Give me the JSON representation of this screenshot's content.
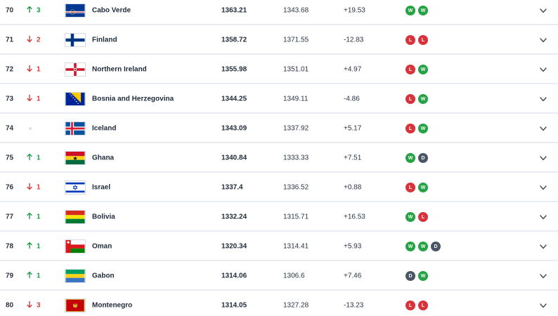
{
  "rows": [
    {
      "rank": "70",
      "move_dir": "up",
      "move": "3",
      "team": "Cabo Verde",
      "flag": "cabo-verde",
      "points": "1363.21",
      "previous": "1343.68",
      "diff": "+19.53",
      "form": [
        "W",
        "W"
      ]
    },
    {
      "rank": "71",
      "move_dir": "down",
      "move": "2",
      "team": "Finland",
      "flag": "finland",
      "points": "1358.72",
      "previous": "1371.55",
      "diff": "-12.83",
      "form": [
        "L",
        "L"
      ]
    },
    {
      "rank": "72",
      "move_dir": "down",
      "move": "1",
      "team": "Northern Ireland",
      "flag": "northern-ireland",
      "points": "1355.98",
      "previous": "1351.01",
      "diff": "+4.97",
      "form": [
        "L",
        "W"
      ]
    },
    {
      "rank": "73",
      "move_dir": "down",
      "move": "1",
      "team": "Bosnia and Herzegovina",
      "flag": "bosnia",
      "points": "1344.25",
      "previous": "1349.11",
      "diff": "-4.86",
      "form": [
        "L",
        "W"
      ]
    },
    {
      "rank": "74",
      "move_dir": "none",
      "move": "",
      "team": "Iceland",
      "flag": "iceland",
      "points": "1343.09",
      "previous": "1337.92",
      "diff": "+5.17",
      "form": [
        "L",
        "W"
      ]
    },
    {
      "rank": "75",
      "move_dir": "up",
      "move": "1",
      "team": "Ghana",
      "flag": "ghana",
      "points": "1340.84",
      "previous": "1333.33",
      "diff": "+7.51",
      "form": [
        "W",
        "D"
      ]
    },
    {
      "rank": "76",
      "move_dir": "down",
      "move": "1",
      "team": "Israel",
      "flag": "israel",
      "points": "1337.4",
      "previous": "1336.52",
      "diff": "+0.88",
      "form": [
        "L",
        "W"
      ]
    },
    {
      "rank": "77",
      "move_dir": "up",
      "move": "1",
      "team": "Bolivia",
      "flag": "bolivia",
      "points": "1332.24",
      "previous": "1315.71",
      "diff": "+16.53",
      "form": [
        "W",
        "L"
      ]
    },
    {
      "rank": "78",
      "move_dir": "up",
      "move": "1",
      "team": "Oman",
      "flag": "oman",
      "points": "1320.34",
      "previous": "1314.41",
      "diff": "+5.93",
      "form": [
        "W",
        "W",
        "D"
      ]
    },
    {
      "rank": "79",
      "move_dir": "up",
      "move": "1",
      "team": "Gabon",
      "flag": "gabon",
      "points": "1314.06",
      "previous": "1306.6",
      "diff": "+7.46",
      "form": [
        "D",
        "W"
      ]
    },
    {
      "rank": "80",
      "move_dir": "down",
      "move": "3",
      "team": "Montenegro",
      "flag": "montenegro",
      "points": "1314.05",
      "previous": "1327.28",
      "diff": "-13.23",
      "form": [
        "L",
        "L"
      ]
    }
  ],
  "icons": {
    "up": "arrow-up-icon",
    "down": "arrow-down-icon",
    "none": "no-change-dot-icon",
    "expand": "chevron-down-icon"
  },
  "colors": {
    "up": "#1f9a4a",
    "down": "#d43b3b",
    "win": "#25a244",
    "loss": "#d8333d",
    "draw": "#4a5565"
  }
}
